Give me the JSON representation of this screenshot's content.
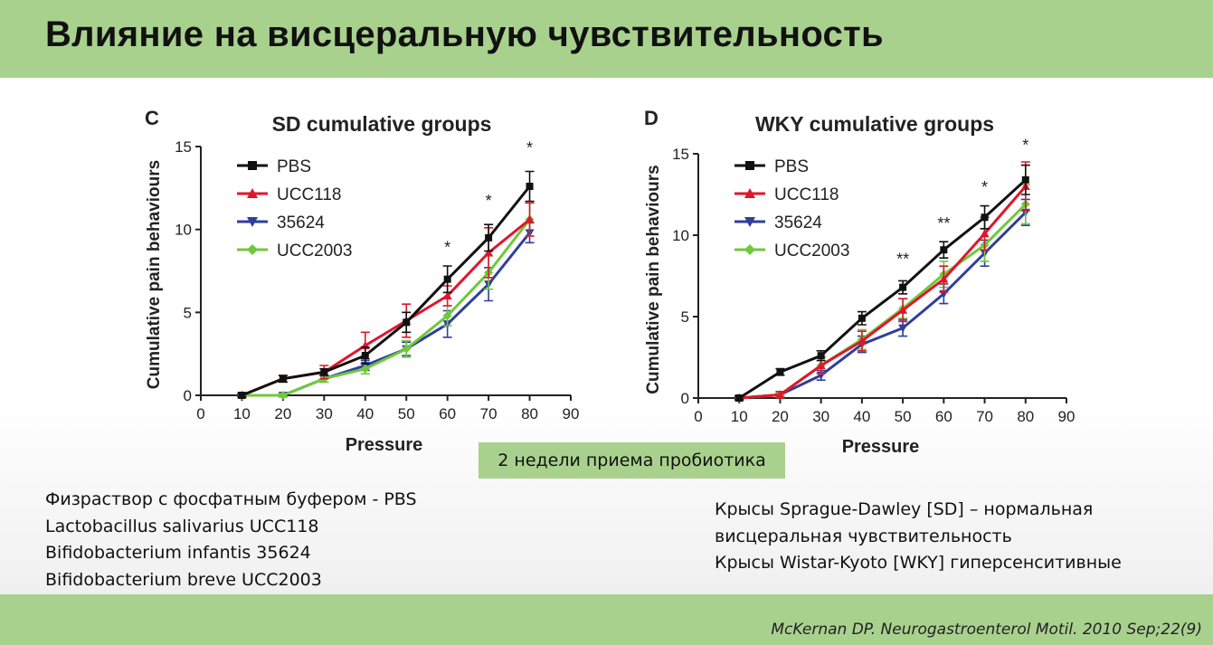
{
  "title": "Влияние на висцеральную чувствительность",
  "callout": "2 недели приема пробиотика",
  "legend_notes": [
    "Физраствор с фосфатным буфером - PBS",
    "Lactobacillus salivarius UCC118",
    "Bifidobacterium infantis 35624",
    "Bifidobacterium breve UCC2003"
  ],
  "rats_notes": [
    "Крысы Sprague-Dawley [SD] – нормальная",
    "висцеральная чувствительность",
    "Крысы Wistar-Kyoto [WKY] гиперсенситивные"
  ],
  "citation": "McKernan DP. Neurogastroenterol Motil. 2010 Sep;22(9)",
  "colors": {
    "PBS": "#111111",
    "UCC118": "#e0162b",
    "35624": "#2f3f9a",
    "UCC2003": "#6fc93a",
    "header": "#a9d18e"
  },
  "chart_data": [
    {
      "panel": "C",
      "type": "line",
      "title": "SD cumulative groups",
      "xlabel": "Pressure",
      "ylabel": "Cumulative pain behaviours",
      "xlim": [
        0,
        90
      ],
      "ylim": [
        0,
        15
      ],
      "xticks": [
        0,
        10,
        20,
        30,
        40,
        50,
        60,
        70,
        80,
        90
      ],
      "yticks": [
        0,
        5,
        10,
        15
      ],
      "legend_position": "top-left",
      "x": [
        10,
        20,
        30,
        40,
        50,
        60,
        70,
        80
      ],
      "series": [
        {
          "name": "PBS",
          "marker": "square",
          "values": [
            0,
            1.0,
            1.4,
            2.4,
            4.4,
            7.0,
            9.5,
            12.6
          ],
          "errors": [
            0.1,
            0.2,
            0.2,
            0.5,
            0.6,
            0.8,
            0.8,
            0.9
          ]
        },
        {
          "name": "UCC118",
          "marker": "triangle-up",
          "values": [
            0,
            1.0,
            1.4,
            3.0,
            4.5,
            6.0,
            8.6,
            10.6
          ],
          "errors": [
            0.1,
            0.2,
            0.4,
            0.8,
            1.0,
            0.6,
            1.5,
            1.0
          ]
        },
        {
          "name": "35624",
          "marker": "triangle-down",
          "values": [
            0,
            0,
            1.0,
            1.8,
            2.8,
            4.3,
            6.7,
            9.8
          ],
          "errors": [
            0.1,
            0.1,
            0.2,
            0.3,
            0.4,
            0.8,
            1.0,
            0.6
          ]
        },
        {
          "name": "UCC2003",
          "marker": "diamond",
          "values": [
            0,
            0,
            1.0,
            1.6,
            2.8,
            4.8,
            7.4,
            10.6
          ],
          "errors": [
            0.1,
            0.1,
            0.2,
            0.3,
            0.5,
            0.6,
            1.0,
            1.0
          ]
        }
      ],
      "annotations": [
        {
          "x": 60,
          "y": 8.6,
          "text": "*"
        },
        {
          "x": 70,
          "y": 11.4,
          "text": "*"
        },
        {
          "x": 80,
          "y": 14.6,
          "text": "*"
        }
      ]
    },
    {
      "panel": "D",
      "type": "line",
      "title": "WKY cumulative groups",
      "xlabel": "Pressure",
      "ylabel": "Cumulative pain behaviours",
      "xlim": [
        0,
        90
      ],
      "ylim": [
        0,
        15
      ],
      "xticks": [
        0,
        10,
        20,
        30,
        40,
        50,
        60,
        70,
        80,
        90
      ],
      "yticks": [
        0,
        5,
        10,
        15
      ],
      "legend_position": "top-left",
      "x": [
        10,
        20,
        30,
        40,
        50,
        60,
        70,
        80
      ],
      "series": [
        {
          "name": "PBS",
          "marker": "square",
          "values": [
            0,
            1.6,
            2.6,
            4.9,
            6.8,
            9.1,
            11.1,
            13.4
          ],
          "errors": [
            0.1,
            0.2,
            0.3,
            0.4,
            0.4,
            0.5,
            0.7,
            0.9
          ]
        },
        {
          "name": "UCC118",
          "marker": "triangle-up",
          "values": [
            0,
            0.2,
            2.0,
            3.5,
            5.4,
            7.3,
            10.1,
            13.0
          ],
          "errors": [
            0.1,
            0.2,
            0.5,
            0.6,
            0.7,
            0.8,
            1.0,
            1.5
          ]
        },
        {
          "name": "35624",
          "marker": "triangle-down",
          "values": [
            0,
            0.2,
            1.4,
            3.3,
            4.3,
            6.4,
            8.9,
            11.4
          ],
          "errors": [
            0.1,
            0.1,
            0.3,
            0.5,
            0.5,
            0.6,
            0.8,
            0.8
          ]
        },
        {
          "name": "UCC2003",
          "marker": "diamond",
          "values": [
            0,
            0.2,
            2.0,
            3.6,
            5.5,
            7.6,
            9.4,
            11.9
          ],
          "errors": [
            0.1,
            0.1,
            0.5,
            0.6,
            0.6,
            0.8,
            1.0,
            1.2
          ]
        }
      ],
      "annotations": [
        {
          "x": 50,
          "y": 8.2,
          "text": "**"
        },
        {
          "x": 60,
          "y": 10.4,
          "text": "**"
        },
        {
          "x": 70,
          "y": 12.6,
          "text": "*"
        },
        {
          "x": 80,
          "y": 15.2,
          "text": "*"
        }
      ]
    }
  ]
}
